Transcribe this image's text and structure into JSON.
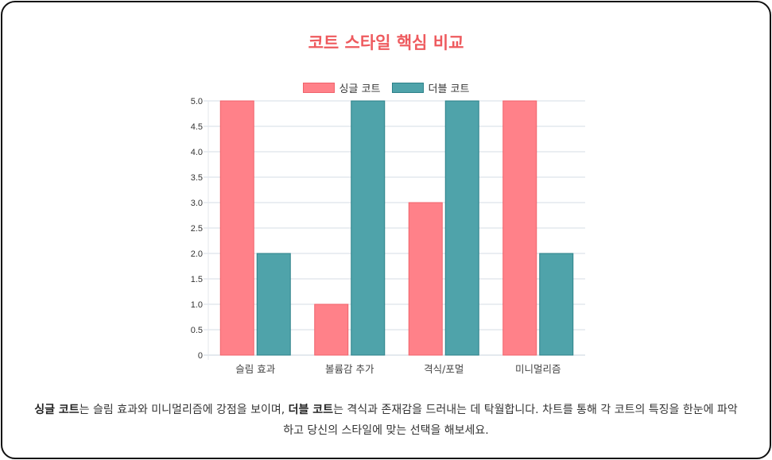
{
  "title": "코트 스타일 핵심 비교",
  "legend": [
    {
      "label": "싱글 코트",
      "color": "#ff8189",
      "border": "#f0626b"
    },
    {
      "label": "더블 코트",
      "color": "#4fa3aa",
      "border": "#2c8189"
    }
  ],
  "chart_data": {
    "type": "bar",
    "title": "코트 스타일 핵심 비교",
    "categories": [
      "슬림 효과",
      "볼륨감 추가",
      "격식/포멀",
      "미니멀리즘"
    ],
    "series": [
      {
        "name": "싱글 코트",
        "values": [
          5,
          1,
          3,
          5
        ],
        "color": "#ff8189"
      },
      {
        "name": "더블 코트",
        "values": [
          2,
          5,
          5,
          2
        ],
        "color": "#4fa3aa"
      }
    ],
    "xlabel": "",
    "ylabel": "",
    "ylim": [
      0,
      5
    ],
    "yticks": [
      "0",
      "0.5",
      "1.0",
      "1.5",
      "2.0",
      "2.5",
      "3.0",
      "3.5",
      "4.0",
      "4.5",
      "5.0"
    ],
    "grid": true,
    "legend_position": "top"
  },
  "description": {
    "strong1": "싱글 코트",
    "text1": "는 슬림 효과와 미니멀리즘에 강점을 보이며, ",
    "strong2": "더블 코트",
    "text2": "는 격식과 존재감을 드러내는 데 탁월합니다. 차트를 통해 각 코트의 특징을 한눈에 파악하고 당신의 스타일에 맞는 선택을 해보세요."
  }
}
